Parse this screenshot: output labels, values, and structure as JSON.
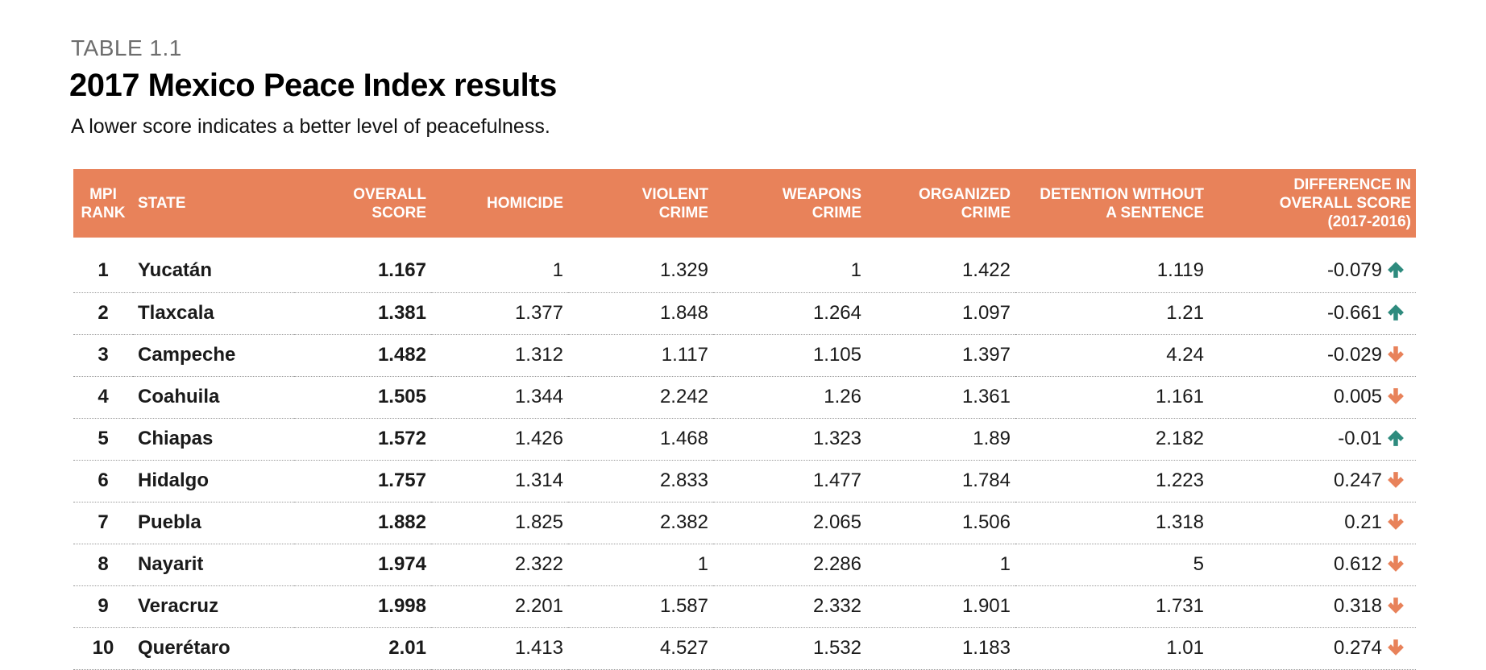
{
  "header": {
    "label": "TABLE 1.1",
    "title": "2017 Mexico Peace Index results",
    "subtitle": "A lower score indicates a better level of peacefulness."
  },
  "colors": {
    "header_bg": "#e8825a",
    "arrow_up": "#2e8b7e",
    "arrow_down": "#e8825a"
  },
  "table": {
    "columns": [
      {
        "line1": "MPI",
        "line2": "RANK"
      },
      {
        "line1": "STATE",
        "line2": ""
      },
      {
        "line1": "OVERALL",
        "line2": "SCORE"
      },
      {
        "line1": "HOMICIDE",
        "line2": ""
      },
      {
        "line1": "VIOLENT",
        "line2": "CRIME"
      },
      {
        "line1": "WEAPONS",
        "line2": "CRIME"
      },
      {
        "line1": "ORGANIZED",
        "line2": "CRIME"
      },
      {
        "line1": "DETENTION WITHOUT",
        "line2": "A SENTENCE"
      },
      {
        "line1": "DIFFERENCE IN",
        "line2": "OVERALL SCORE",
        "line3": "(2017-2016)"
      }
    ],
    "rows": [
      {
        "rank": "1",
        "state": "Yucatán",
        "overall": "1.167",
        "homicide": "1",
        "violent": "1.329",
        "weapons": "1",
        "organized": "1.422",
        "detention": "1.119",
        "difference": "-0.079",
        "trend": "up-arrow-icon"
      },
      {
        "rank": "2",
        "state": "Tlaxcala",
        "overall": "1.381",
        "homicide": "1.377",
        "violent": "1.848",
        "weapons": "1.264",
        "organized": "1.097",
        "detention": "1.21",
        "difference": "-0.661",
        "trend": "up-arrow-icon"
      },
      {
        "rank": "3",
        "state": "Campeche",
        "overall": "1.482",
        "homicide": "1.312",
        "violent": "1.117",
        "weapons": "1.105",
        "organized": "1.397",
        "detention": "4.24",
        "difference": "-0.029",
        "trend": "down-arrow-icon"
      },
      {
        "rank": "4",
        "state": "Coahuila",
        "overall": "1.505",
        "homicide": "1.344",
        "violent": "2.242",
        "weapons": "1.26",
        "organized": "1.361",
        "detention": "1.161",
        "difference": "0.005",
        "trend": "down-arrow-icon"
      },
      {
        "rank": "5",
        "state": "Chiapas",
        "overall": "1.572",
        "homicide": "1.426",
        "violent": "1.468",
        "weapons": "1.323",
        "organized": "1.89",
        "detention": "2.182",
        "difference": "-0.01",
        "trend": "up-arrow-icon"
      },
      {
        "rank": "6",
        "state": "Hidalgo",
        "overall": "1.757",
        "homicide": "1.314",
        "violent": "2.833",
        "weapons": "1.477",
        "organized": "1.784",
        "detention": "1.223",
        "difference": "0.247",
        "trend": "down-arrow-icon"
      },
      {
        "rank": "7",
        "state": "Puebla",
        "overall": "1.882",
        "homicide": "1.825",
        "violent": "2.382",
        "weapons": "2.065",
        "organized": "1.506",
        "detention": "1.318",
        "difference": "0.21",
        "trend": "down-arrow-icon"
      },
      {
        "rank": "8",
        "state": "Nayarit",
        "overall": "1.974",
        "homicide": "2.322",
        "violent": "1",
        "weapons": "2.286",
        "organized": "1",
        "detention": "5",
        "difference": "0.612",
        "trend": "down-arrow-icon"
      },
      {
        "rank": "9",
        "state": "Veracruz",
        "overall": "1.998",
        "homicide": "2.201",
        "violent": "1.587",
        "weapons": "2.332",
        "organized": "1.901",
        "detention": "1.731",
        "difference": "0.318",
        "trend": "down-arrow-icon"
      },
      {
        "rank": "10",
        "state": "Querétaro",
        "overall": "2.01",
        "homicide": "1.413",
        "violent": "4.527",
        "weapons": "1.532",
        "organized": "1.183",
        "detention": "1.01",
        "difference": "0.274",
        "trend": "down-arrow-icon"
      }
    ]
  }
}
